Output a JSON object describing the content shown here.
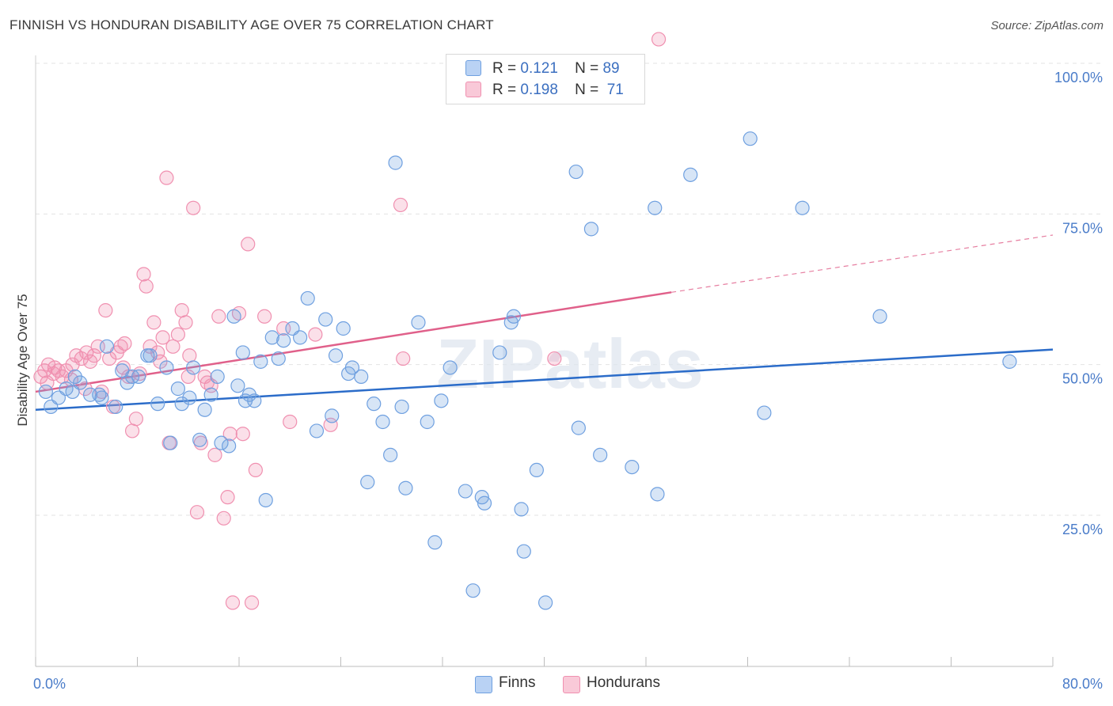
{
  "title": "FINNISH VS HONDURAN DISABILITY AGE OVER 75 CORRELATION CHART",
  "source": "Source: ZipAtlas.com",
  "watermark": "ZIPatlas",
  "legend": {
    "rows": [
      {
        "r_label": "R =",
        "r_value": "0.121",
        "n_label": "N =",
        "n_value": "89"
      },
      {
        "r_label": "R =",
        "r_value": "0.198",
        "n_label": "N =",
        "n_value": "71"
      }
    ]
  },
  "bottom_legend": {
    "finns": "Finns",
    "hondurans": "Hondurans"
  },
  "chart_data": {
    "type": "scatter",
    "title": "FINNISH VS HONDURAN DISABILITY AGE OVER 75 CORRELATION CHART",
    "ylabel": "Disability Age Over 75",
    "xlabel": "",
    "xlim": [
      0,
      80
    ],
    "ylim": [
      0,
      105
    ],
    "x_tick_labels": [
      "0.0%",
      "80.0%"
    ],
    "y_tick_labels": [
      "100.0%",
      "75.0%",
      "50.0%",
      "25.0%"
    ],
    "y_ticks": [
      100,
      75,
      50,
      25
    ],
    "grid": true,
    "colors": {
      "finns": "#6fa0e0",
      "hondurans": "#f090b0",
      "finns_line": "#2b6cc9",
      "hondurans_line": "#e0608a"
    },
    "series": [
      {
        "name": "Finns",
        "color": "#6fa0e0",
        "trend": {
          "x0": 0,
          "y0": 42.5,
          "x1": 80,
          "y1": 52.5
        },
        "points": [
          [
            0.8,
            45.5
          ],
          [
            1.2,
            43
          ],
          [
            1.8,
            44.5
          ],
          [
            2.4,
            46
          ],
          [
            2.9,
            45.5
          ],
          [
            3.5,
            47
          ],
          [
            4.3,
            45
          ],
          [
            5.2,
            44.5
          ],
          [
            5.6,
            53
          ],
          [
            6.3,
            43
          ],
          [
            6.8,
            49
          ],
          [
            7.2,
            47
          ],
          [
            8.1,
            48
          ],
          [
            8.8,
            51.5
          ],
          [
            9.6,
            43.5
          ],
          [
            10.3,
            49.5
          ],
          [
            11.2,
            46
          ],
          [
            11.5,
            43.5
          ],
          [
            12.1,
            44.5
          ],
          [
            12.4,
            49.5
          ],
          [
            13.3,
            42.5
          ],
          [
            13.8,
            45
          ],
          [
            14.3,
            48
          ],
          [
            14.6,
            37
          ],
          [
            15.2,
            36.5
          ],
          [
            15.6,
            58
          ],
          [
            15.9,
            46.5
          ],
          [
            16.3,
            52
          ],
          [
            16.8,
            45
          ],
          [
            17.2,
            44
          ],
          [
            17.7,
            50.5
          ],
          [
            18.1,
            27.5
          ],
          [
            18.6,
            54.5
          ],
          [
            19.1,
            51
          ],
          [
            19.5,
            54
          ],
          [
            20.2,
            56
          ],
          [
            20.8,
            54.5
          ],
          [
            21.4,
            61
          ],
          [
            22.1,
            39
          ],
          [
            22.8,
            57.5
          ],
          [
            23.3,
            41.5
          ],
          [
            23.6,
            51.5
          ],
          [
            24.2,
            56
          ],
          [
            24.6,
            48.5
          ],
          [
            24.9,
            49.5
          ],
          [
            25.6,
            48
          ],
          [
            26.1,
            30.5
          ],
          [
            26.6,
            43.5
          ],
          [
            27.3,
            40.5
          ],
          [
            27.9,
            35
          ],
          [
            28.3,
            83.5
          ],
          [
            28.8,
            43
          ],
          [
            29.1,
            29.5
          ],
          [
            30.1,
            57
          ],
          [
            30.8,
            40.5
          ],
          [
            31.4,
            20.5
          ],
          [
            31.9,
            44
          ],
          [
            32.6,
            49.5
          ],
          [
            33.8,
            29
          ],
          [
            34.4,
            12.5
          ],
          [
            35.1,
            28
          ],
          [
            35.3,
            27
          ],
          [
            36.5,
            52
          ],
          [
            37.4,
            57
          ],
          [
            37.6,
            58
          ],
          [
            38.2,
            26
          ],
          [
            38.4,
            19
          ],
          [
            39.4,
            32.5
          ],
          [
            40.1,
            10.5
          ],
          [
            42.5,
            82
          ],
          [
            42.7,
            39.5
          ],
          [
            43.7,
            72.5
          ],
          [
            44.4,
            35
          ],
          [
            46.9,
            33
          ],
          [
            48.7,
            76
          ],
          [
            48.9,
            28.5
          ],
          [
            51.5,
            81.5
          ],
          [
            56.2,
            87.5
          ],
          [
            57.3,
            42
          ],
          [
            60.3,
            76
          ],
          [
            66.4,
            58
          ],
          [
            76.6,
            50.5
          ],
          [
            9.0,
            51.5
          ],
          [
            5.0,
            45
          ],
          [
            10.6,
            37
          ],
          [
            7.6,
            48
          ],
          [
            3.1,
            48
          ],
          [
            12.9,
            37.5
          ],
          [
            16.5,
            44
          ]
        ]
      },
      {
        "name": "Hondurans",
        "color": "#f090b0",
        "trend": {
          "x0": 0,
          "y0": 45.5,
          "x1": 50,
          "y1": 62,
          "dash_x1": 80,
          "dash_y1": 71.5
        },
        "points": [
          [
            0.4,
            48
          ],
          [
            0.7,
            49
          ],
          [
            1.0,
            50
          ],
          [
            1.4,
            48.5
          ],
          [
            1.8,
            49
          ],
          [
            2.1,
            48
          ],
          [
            2.4,
            49
          ],
          [
            2.8,
            47.5
          ],
          [
            3.2,
            51.5
          ],
          [
            3.6,
            51
          ],
          [
            4.0,
            52
          ],
          [
            4.3,
            50.5
          ],
          [
            4.6,
            51.5
          ],
          [
            4.9,
            53
          ],
          [
            5.2,
            45.5
          ],
          [
            5.5,
            59
          ],
          [
            5.8,
            51
          ],
          [
            6.1,
            43
          ],
          [
            6.4,
            52
          ],
          [
            6.7,
            53
          ],
          [
            7.0,
            53.5
          ],
          [
            7.3,
            48
          ],
          [
            7.6,
            39
          ],
          [
            7.9,
            41
          ],
          [
            8.2,
            48.5
          ],
          [
            8.5,
            65
          ],
          [
            8.7,
            63
          ],
          [
            9.0,
            53
          ],
          [
            9.3,
            57
          ],
          [
            9.6,
            52
          ],
          [
            10.0,
            54.5
          ],
          [
            10.3,
            81
          ],
          [
            10.5,
            37
          ],
          [
            10.8,
            53
          ],
          [
            11.2,
            55
          ],
          [
            11.5,
            59
          ],
          [
            11.8,
            57
          ],
          [
            12.1,
            51.5
          ],
          [
            12.4,
            76
          ],
          [
            12.7,
            25.5
          ],
          [
            13.0,
            37
          ],
          [
            13.3,
            48
          ],
          [
            13.5,
            47
          ],
          [
            13.8,
            46.5
          ],
          [
            14.1,
            35
          ],
          [
            14.4,
            58
          ],
          [
            14.8,
            24.5
          ],
          [
            15.1,
            28
          ],
          [
            15.5,
            10.5
          ],
          [
            16.0,
            58.5
          ],
          [
            16.3,
            38.5
          ],
          [
            16.7,
            70
          ],
          [
            17.0,
            10.5
          ],
          [
            17.3,
            32.5
          ],
          [
            18.0,
            58
          ],
          [
            19.5,
            56
          ],
          [
            20.0,
            40.5
          ],
          [
            22.0,
            55
          ],
          [
            23.2,
            40
          ],
          [
            28.7,
            76.5
          ],
          [
            28.9,
            51
          ],
          [
            40.8,
            51
          ],
          [
            49.0,
            104
          ],
          [
            1.5,
            49.5
          ],
          [
            2.9,
            50
          ],
          [
            3.9,
            46
          ],
          [
            6.9,
            49.5
          ],
          [
            9.8,
            50.5
          ],
          [
            12.0,
            48
          ],
          [
            15.3,
            38.5
          ],
          [
            0.9,
            47
          ]
        ]
      }
    ]
  }
}
